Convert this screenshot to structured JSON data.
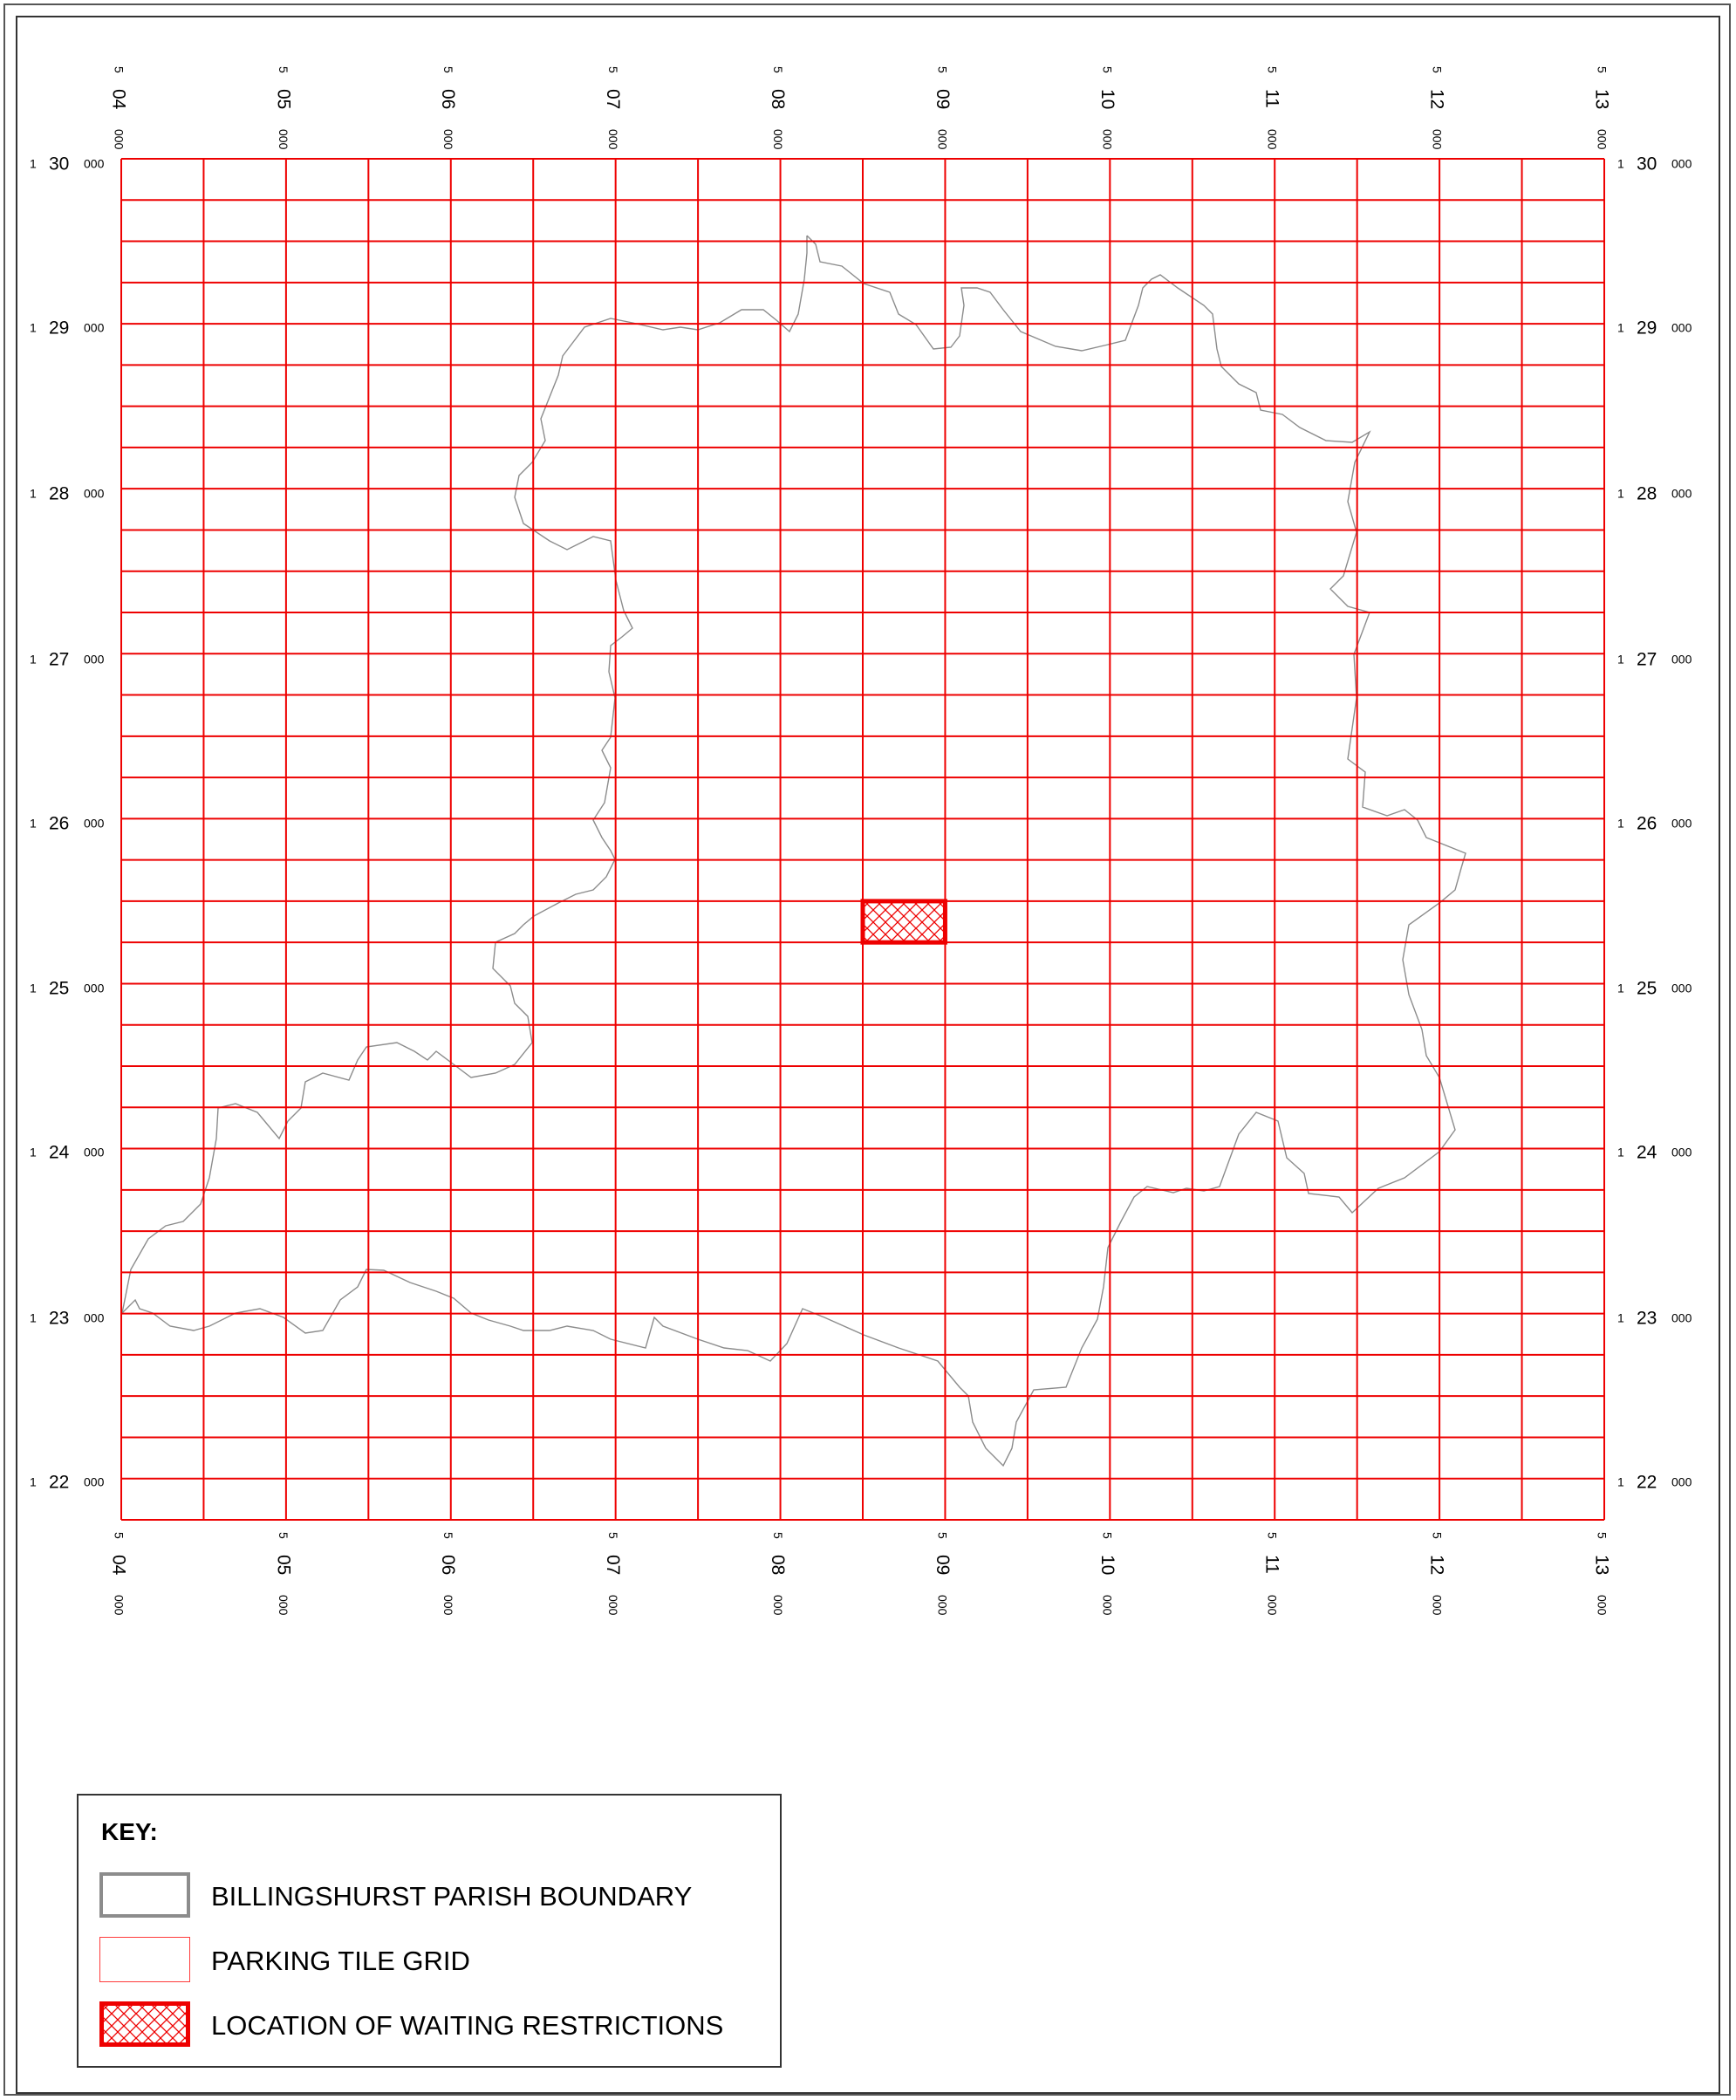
{
  "map": {
    "easting_labels": [
      {
        "prefix": "5",
        "major": "04",
        "minor": "000"
      },
      {
        "prefix": "5",
        "major": "05",
        "minor": "000"
      },
      {
        "prefix": "5",
        "major": "06",
        "minor": "000"
      },
      {
        "prefix": "5",
        "major": "07",
        "minor": "000"
      },
      {
        "prefix": "5",
        "major": "08",
        "minor": "000"
      },
      {
        "prefix": "5",
        "major": "09",
        "minor": "000"
      },
      {
        "prefix": "5",
        "major": "10",
        "minor": "000"
      },
      {
        "prefix": "5",
        "major": "11",
        "minor": "000"
      },
      {
        "prefix": "5",
        "major": "12",
        "minor": "000"
      },
      {
        "prefix": "5",
        "major": "13",
        "minor": "000"
      }
    ],
    "northing_labels": [
      {
        "prefix": "1",
        "major": "30",
        "minor": "000"
      },
      {
        "prefix": "1",
        "major": "29",
        "minor": "000"
      },
      {
        "prefix": "1",
        "major": "28",
        "minor": "000"
      },
      {
        "prefix": "1",
        "major": "27",
        "minor": "000"
      },
      {
        "prefix": "1",
        "major": "26",
        "minor": "000"
      },
      {
        "prefix": "1",
        "major": "25",
        "minor": "000"
      },
      {
        "prefix": "1",
        "major": "24",
        "minor": "000"
      },
      {
        "prefix": "1",
        "major": "23",
        "minor": "000"
      },
      {
        "prefix": "1",
        "major": "22",
        "minor": "000"
      }
    ],
    "grid_color": "#ee0000",
    "boundary_color": "#8c8c8c",
    "restriction_tile": {
      "column": 9,
      "row": 18
    }
  },
  "key": {
    "title": "KEY:",
    "items": [
      {
        "label": "BILLINGSHURST PARISH BOUNDARY"
      },
      {
        "label": "PARKING TILE GRID"
      },
      {
        "label": "LOCATION OF WAITING RESTRICTIONS"
      }
    ]
  }
}
